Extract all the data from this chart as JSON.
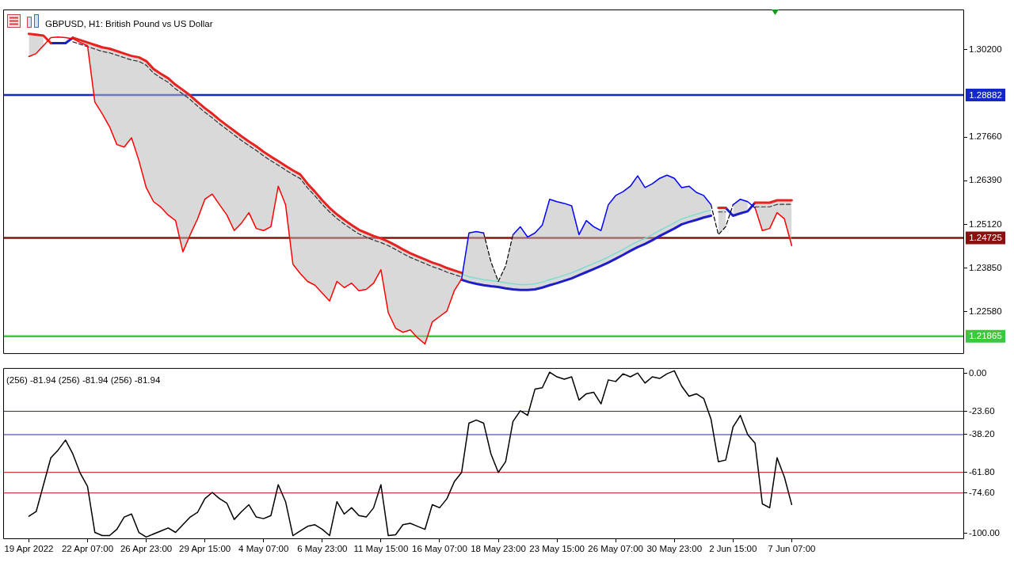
{
  "chart_data": [
    {
      "type": "line",
      "title": "GBPUSD, H1: British Pound vs US Dollar",
      "categories": [
        null,
        null,
        null,
        null,
        null,
        null,
        null,
        null,
        null,
        null,
        null,
        null,
        null,
        null,
        null,
        null,
        null,
        null,
        null,
        null,
        null,
        null,
        null,
        null,
        null,
        null,
        null,
        null,
        null,
        null,
        null,
        null,
        null,
        null,
        null,
        null,
        null,
        null,
        null,
        null,
        null,
        null,
        null,
        null,
        null,
        null,
        null,
        null,
        null,
        null,
        null,
        null,
        null,
        null,
        null,
        null,
        null,
        null,
        null,
        null,
        null,
        null,
        null,
        null,
        null,
        null,
        null,
        null,
        null,
        null,
        null,
        null,
        null,
        null,
        null,
        null,
        null,
        null,
        null,
        null,
        null,
        null,
        null,
        null,
        null,
        null,
        null,
        null,
        null,
        null,
        null,
        null,
        null,
        null,
        null,
        null,
        null,
        null,
        null,
        null,
        null,
        null,
        null,
        null,
        null,
        null,
        null,
        null,
        null,
        null,
        null,
        null,
        null,
        null,
        null,
        null,
        null,
        null,
        null,
        null,
        null,
        null,
        null,
        null,
        null,
        null,
        null,
        null,
        null,
        null,
        null
      ],
      "series": [
        {
          "color": "#ff0000",
          "values": [
            null,
            null,
            null,
            1.3,
            1.3009,
            1.3032,
            1.3055,
            1.3057,
            1.3055,
            1.3052,
            1.3041,
            1.3032,
            1.2868,
            1.2834,
            1.2796,
            1.2744,
            1.2737,
            1.2764,
            1.2698,
            1.2619,
            1.2578,
            1.2562,
            1.2539,
            1.2523,
            1.2432,
            1.2482,
            1.2528,
            1.2585,
            1.26,
            1.2569,
            1.2539,
            1.2494,
            1.2516,
            1.2546,
            1.25,
            1.2494,
            1.2505,
            1.2623,
            1.2569,
            1.2396,
            1.2369,
            1.2346,
            1.2335,
            1.2312,
            1.2289,
            1.2346,
            1.2328,
            1.2341,
            1.2319,
            1.2323,
            1.2341,
            1.238,
            1.2255,
            1.221,
            1.2198,
            1.2205,
            1.2182,
            1.2164,
            1.2228,
            1.2244,
            1.226,
            1.2319,
            1.2353,
            null,
            null,
            null,
            null,
            null,
            null,
            null,
            null,
            null,
            null,
            null,
            null,
            null,
            null,
            null,
            null,
            null,
            null,
            null,
            null,
            null,
            null,
            null,
            null,
            null,
            null,
            null,
            null,
            null,
            null,
            null,
            null,
            null,
            null,
            null,
            null,
            null,
            null,
            null,
            1.256,
            1.2494,
            1.25,
            1.2546,
            1.2528,
            1.245,
            null,
            null,
            null,
            null,
            null,
            null,
            null,
            null,
            null,
            null,
            null,
            null,
            null,
            null,
            null,
            null,
            null,
            null,
            null,
            null,
            null,
            null,
            null
          ]
        },
        {
          "color": "#0000ff",
          "values": [
            null,
            null,
            null,
            null,
            null,
            null,
            null,
            null,
            null,
            null,
            null,
            null,
            null,
            null,
            null,
            null,
            null,
            null,
            null,
            null,
            null,
            null,
            null,
            null,
            null,
            null,
            null,
            null,
            null,
            null,
            null,
            null,
            null,
            null,
            null,
            null,
            null,
            null,
            null,
            null,
            null,
            null,
            null,
            null,
            null,
            null,
            null,
            null,
            null,
            null,
            null,
            null,
            null,
            null,
            null,
            null,
            null,
            null,
            null,
            null,
            null,
            null,
            1.2353,
            1.2487,
            1.2491,
            1.2487,
            null,
            null,
            null,
            1.2482,
            1.2505,
            1.2475,
            1.2487,
            1.251,
            1.2585,
            1.2578,
            1.2573,
            1.2566,
            1.2482,
            1.2523,
            1.2505,
            1.2494,
            1.2569,
            1.2596,
            1.2607,
            1.2623,
            1.2653,
            1.2619,
            1.263,
            1.2646,
            1.2655,
            1.2646,
            1.2619,
            1.2623,
            1.2605,
            1.2596,
            1.2569,
            null,
            null,
            1.2569,
            1.2585,
            1.2578,
            1.256,
            null,
            null,
            null,
            null,
            null,
            null,
            null,
            null,
            null,
            null,
            null,
            null,
            null,
            null,
            null,
            null,
            null,
            null,
            null,
            null,
            null,
            null,
            null,
            null,
            null,
            null,
            null,
            null
          ]
        },
        {
          "color": "#000000",
          "line_style": "dashed",
          "values": [
            null,
            null,
            null,
            null,
            null,
            null,
            null,
            null,
            null,
            null,
            null,
            null,
            null,
            null,
            null,
            null,
            null,
            null,
            null,
            null,
            null,
            null,
            null,
            null,
            null,
            null,
            null,
            null,
            null,
            null,
            null,
            null,
            null,
            null,
            null,
            null,
            null,
            null,
            null,
            null,
            null,
            null,
            null,
            null,
            null,
            null,
            null,
            null,
            null,
            null,
            null,
            null,
            null,
            null,
            null,
            null,
            null,
            null,
            null,
            null,
            null,
            null,
            null,
            null,
            null,
            1.2487,
            1.2403,
            1.2346,
            1.2391,
            1.2482,
            null,
            null,
            null,
            null,
            null,
            null,
            null,
            null,
            null,
            null,
            null,
            null,
            null,
            null,
            null,
            null,
            null,
            null,
            null,
            null,
            null,
            null,
            null,
            null,
            null,
            null,
            1.2569,
            1.2482,
            1.2505,
            1.2569,
            null,
            null,
            null,
            null,
            null,
            null,
            null,
            null,
            null,
            null,
            null,
            null,
            null,
            null,
            null,
            null,
            null,
            null,
            null,
            null,
            null,
            null,
            null,
            null,
            null,
            null,
            null,
            null,
            null,
            null,
            null
          ]
        },
        {
          "color": "#e8231f",
          "values": [
            null,
            null,
            null,
            1.3066,
            1.3064,
            1.3061,
            1.3039,
            null,
            null,
            1.3055,
            1.3048,
            1.3041,
            1.3034,
            1.3027,
            1.3023,
            1.3016,
            1.3009,
            1.3002,
            1.2998,
            1.2987,
            1.2964,
            1.295,
            1.2937,
            1.2918,
            1.2903,
            1.2887,
            1.2868,
            1.285,
            1.2834,
            1.2816,
            1.28,
            1.2784,
            1.2768,
            1.2753,
            1.2739,
            1.2723,
            1.2709,
            1.2696,
            1.2682,
            1.2669,
            1.2657,
            1.263,
            1.2607,
            1.2582,
            1.256,
            1.2541,
            1.2525,
            1.251,
            1.2496,
            1.2487,
            1.2478,
            1.2471,
            1.2462,
            1.2451,
            1.2439,
            1.2428,
            1.2419,
            1.241,
            1.2401,
            1.2394,
            1.2385,
            1.2378,
            1.2371,
            null,
            null,
            null,
            null,
            null,
            null,
            null,
            null,
            null,
            null,
            null,
            null,
            null,
            null,
            null,
            null,
            null,
            null,
            null,
            null,
            null,
            null,
            null,
            null,
            null,
            null,
            null,
            null,
            null,
            null,
            null,
            null,
            null,
            null,
            1.256,
            1.256,
            null,
            null,
            null,
            1.2575,
            1.2575,
            1.2575,
            1.2582,
            1.2582,
            1.2582,
            null,
            null,
            null,
            null,
            null,
            null,
            null,
            null,
            null,
            null,
            null,
            null,
            null,
            null,
            null,
            null,
            null,
            null,
            null,
            null,
            null,
            null,
            null
          ],
          "lower": [
            null,
            null,
            null,
            1.3,
            1.3009,
            1.3032,
            null,
            null,
            null,
            1.3052,
            1.3041,
            1.3032,
            1.2868,
            1.2834,
            1.2796,
            1.2744,
            1.2737,
            1.2764,
            1.2698,
            1.2619,
            1.2578,
            1.2562,
            1.2539,
            1.2523,
            1.2432,
            1.2482,
            1.2528,
            1.2585,
            1.26,
            1.2569,
            1.2539,
            1.2494,
            1.2516,
            1.2546,
            1.25,
            1.2494,
            1.2505,
            1.2623,
            1.2569,
            1.2396,
            1.2369,
            1.2346,
            1.2335,
            1.2312,
            1.2289,
            1.2346,
            1.2328,
            1.2341,
            1.2319,
            1.2323,
            1.2341,
            1.238,
            1.2255,
            1.221,
            1.2198,
            1.2205,
            1.2182,
            1.2164,
            1.2228,
            1.2244,
            1.226,
            1.2319,
            1.2353,
            null,
            null,
            null,
            null,
            null,
            null,
            null,
            null,
            null,
            null,
            null,
            null,
            null,
            null,
            null,
            null,
            null,
            null,
            null,
            null,
            null,
            null,
            null,
            null,
            null,
            null,
            null,
            null,
            null,
            null,
            null,
            null,
            null,
            null,
            1.2482,
            1.2505,
            null,
            null,
            null,
            1.256,
            1.2494,
            1.25,
            1.2546,
            1.2528,
            1.245,
            null,
            null,
            null,
            null,
            null,
            null,
            null,
            null,
            null,
            null,
            null,
            null,
            null,
            null,
            null,
            null,
            null,
            null,
            null,
            null,
            null,
            null,
            null
          ],
          "upper": [
            null,
            null,
            null,
            1.3066,
            1.3064,
            1.3061,
            null,
            null,
            null,
            1.3055,
            1.3048,
            1.3041,
            1.3034,
            1.3027,
            1.3023,
            1.3016,
            1.3009,
            1.3002,
            1.2998,
            1.2987,
            1.2964,
            1.295,
            1.2937,
            1.2918,
            1.2903,
            1.2887,
            1.2868,
            1.285,
            1.2834,
            1.2816,
            1.28,
            1.2784,
            1.2768,
            1.2753,
            1.2739,
            1.2723,
            1.2709,
            1.2696,
            1.2682,
            1.2669,
            1.2657,
            1.263,
            1.2607,
            1.2582,
            1.256,
            1.2541,
            1.2525,
            1.251,
            1.2496,
            1.2487,
            1.2478,
            1.2471,
            1.2462,
            1.2451,
            1.2439,
            1.2428,
            1.2419,
            1.241,
            1.2401,
            1.2394,
            1.2385,
            1.2378,
            1.2371,
            null,
            null,
            null,
            null,
            null,
            null,
            null,
            null,
            null,
            null,
            null,
            null,
            null,
            null,
            null,
            null,
            null,
            null,
            null,
            null,
            null,
            null,
            null,
            null,
            null,
            null,
            null,
            null,
            null,
            null,
            null,
            null,
            null,
            null,
            1.256,
            1.256,
            null,
            null,
            null,
            1.2575,
            1.2575,
            1.2575,
            1.2582,
            1.2582,
            1.2582,
            null,
            null,
            null,
            null,
            null,
            null,
            null,
            null,
            null,
            null,
            null,
            null,
            null,
            null,
            null,
            null,
            null,
            null,
            null,
            null,
            null,
            null,
            null
          ]
        },
        {
          "color": "#1e1ec8",
          "values": [
            null,
            null,
            null,
            null,
            null,
            null,
            1.3039,
            1.3039,
            1.3039,
            1.3055,
            null,
            null,
            null,
            null,
            null,
            null,
            null,
            null,
            null,
            null,
            null,
            null,
            null,
            null,
            null,
            null,
            null,
            null,
            null,
            null,
            null,
            null,
            null,
            null,
            null,
            null,
            null,
            null,
            null,
            null,
            null,
            null,
            null,
            null,
            null,
            null,
            null,
            null,
            null,
            null,
            null,
            null,
            null,
            null,
            null,
            null,
            null,
            null,
            null,
            null,
            null,
            null,
            1.2351,
            1.2344,
            1.2339,
            1.2335,
            1.2332,
            1.233,
            1.2326,
            1.2323,
            1.2321,
            1.2321,
            1.2323,
            1.2328,
            1.2335,
            1.2341,
            1.2348,
            1.2355,
            1.2364,
            1.2373,
            1.2382,
            1.2391,
            1.2401,
            1.2412,
            1.2423,
            1.2435,
            1.2446,
            1.2455,
            1.2466,
            1.2478,
            1.2489,
            1.25,
            1.2512,
            1.2519,
            1.2525,
            1.2532,
            1.2537,
            null,
            1.256,
            1.2537,
            1.2544,
            1.255,
            1.2575,
            null,
            null,
            null,
            null,
            null,
            null,
            null,
            null,
            null,
            null,
            null,
            null,
            null,
            null,
            null,
            null,
            null,
            null,
            null,
            null,
            null,
            null,
            null,
            null,
            null,
            null,
            null,
            null
          ],
          "lower": [
            null,
            null,
            null,
            null,
            null,
            null,
            null,
            null,
            null,
            null,
            null,
            null,
            null,
            null,
            null,
            null,
            null,
            null,
            null,
            null,
            null,
            null,
            null,
            null,
            null,
            null,
            null,
            null,
            null,
            null,
            null,
            null,
            null,
            null,
            null,
            null,
            null,
            null,
            null,
            null,
            null,
            null,
            null,
            null,
            null,
            null,
            null,
            null,
            null,
            null,
            null,
            null,
            null,
            null,
            null,
            null,
            null,
            null,
            null,
            null,
            null,
            null,
            1.2351,
            1.2344,
            1.2339,
            1.2335,
            1.2332,
            1.233,
            1.2326,
            1.2323,
            1.2321,
            1.2321,
            1.2323,
            1.2328,
            1.2335,
            1.2341,
            1.2348,
            1.2355,
            1.2364,
            1.2373,
            1.2382,
            1.2391,
            1.2401,
            1.2412,
            1.2423,
            1.2435,
            1.2446,
            1.2455,
            1.2466,
            1.2478,
            1.2489,
            1.25,
            1.2512,
            1.2519,
            1.2525,
            1.2532,
            1.2537,
            null,
            null,
            1.2537,
            1.2544,
            1.255,
            null,
            null,
            null,
            null,
            null,
            null,
            null,
            null,
            null,
            null,
            null,
            null,
            null,
            null,
            null,
            null,
            null,
            null,
            null,
            null,
            null,
            null,
            null,
            null,
            null,
            null,
            null,
            null,
            null
          ],
          "upper": [
            null,
            null,
            null,
            null,
            null,
            null,
            null,
            null,
            null,
            null,
            null,
            null,
            null,
            null,
            null,
            null,
            null,
            null,
            null,
            null,
            null,
            null,
            null,
            null,
            null,
            null,
            null,
            null,
            null,
            null,
            null,
            null,
            null,
            null,
            null,
            null,
            null,
            null,
            null,
            null,
            null,
            null,
            null,
            null,
            null,
            null,
            null,
            null,
            null,
            null,
            null,
            null,
            null,
            null,
            null,
            null,
            null,
            null,
            null,
            null,
            null,
            null,
            1.2353,
            1.2487,
            1.2491,
            1.2487,
            1.2403,
            1.2346,
            1.2391,
            1.2482,
            1.2505,
            1.2475,
            1.2487,
            1.251,
            1.2585,
            1.2578,
            1.2573,
            1.2566,
            1.2482,
            1.2523,
            1.2505,
            1.2494,
            1.2569,
            1.2596,
            1.2607,
            1.2623,
            1.2653,
            1.2619,
            1.263,
            1.2646,
            1.2655,
            1.2646,
            1.2619,
            1.2623,
            1.2605,
            1.2596,
            1.2569,
            null,
            null,
            1.2569,
            1.2585,
            1.2578,
            null,
            null,
            null,
            null,
            null,
            null,
            null,
            null,
            null,
            null,
            null,
            null,
            null,
            null,
            null,
            null,
            null,
            null,
            null,
            null,
            null,
            null,
            null,
            null,
            null,
            null,
            null,
            null,
            null
          ]
        },
        {
          "color": "#303030",
          "line_style": "dashed",
          "values": [
            null,
            null,
            null,
            null,
            null,
            null,
            null,
            null,
            null,
            1.3043,
            1.3036,
            1.3029,
            1.3022,
            1.3015,
            1.3011,
            1.3004,
            1.2997,
            1.299,
            1.2986,
            1.2975,
            1.2952,
            1.2938,
            1.2925,
            1.2906,
            1.2891,
            1.2875,
            1.2856,
            1.2838,
            1.2822,
            1.2804,
            1.2788,
            1.2772,
            1.2756,
            1.2741,
            1.2727,
            1.2711,
            1.2697,
            1.2684,
            1.267,
            1.2657,
            1.2645,
            1.2618,
            1.2595,
            1.257,
            1.2548,
            1.2529,
            1.2513,
            1.2498,
            1.2484,
            1.2475,
            1.2466,
            1.2459,
            1.245,
            1.2439,
            1.2427,
            1.2416,
            1.2407,
            1.2398,
            1.2389,
            1.2382,
            1.2373,
            1.2366,
            1.2359,
            null,
            null,
            null,
            null,
            null,
            null,
            null,
            null,
            null,
            null,
            null,
            null,
            null,
            null,
            null,
            null,
            null,
            null,
            null,
            null,
            null,
            null,
            null,
            null,
            null,
            null,
            null,
            null,
            null,
            null,
            null,
            null,
            null,
            null,
            1.2548,
            1.2548,
            null,
            null,
            null,
            1.2563,
            1.2563,
            1.2563,
            1.257,
            1.257,
            1.257,
            null,
            null,
            null,
            null,
            null,
            null,
            null,
            null,
            null,
            null,
            null,
            null,
            null,
            null,
            null,
            null,
            null,
            null,
            null,
            null,
            null,
            null,
            null
          ]
        },
        {
          "color": "#7ddccf",
          "values": [
            null,
            null,
            null,
            null,
            null,
            null,
            null,
            null,
            null,
            null,
            null,
            null,
            null,
            null,
            null,
            null,
            null,
            null,
            null,
            null,
            null,
            null,
            null,
            null,
            null,
            null,
            null,
            null,
            null,
            null,
            null,
            null,
            null,
            null,
            null,
            null,
            null,
            null,
            null,
            null,
            null,
            null,
            null,
            null,
            null,
            null,
            null,
            null,
            null,
            null,
            null,
            null,
            null,
            null,
            null,
            null,
            null,
            null,
            null,
            null,
            null,
            null,
            1.2367,
            1.236,
            1.2355,
            1.2351,
            1.2348,
            1.2346,
            1.2342,
            1.2339,
            1.2337,
            1.2337,
            1.2339,
            1.2344,
            1.2351,
            1.2357,
            1.2364,
            1.2371,
            1.238,
            1.2389,
            1.2398,
            1.2407,
            1.2417,
            1.2428,
            1.2439,
            1.2451,
            1.2462,
            1.2471,
            1.2482,
            1.2494,
            1.2505,
            1.2516,
            1.2528,
            1.2535,
            1.2541,
            1.2548,
            1.2553,
            null,
            null,
            null,
            null,
            null,
            null,
            null,
            null,
            null,
            null,
            null,
            null,
            null,
            null,
            null,
            null,
            null,
            null,
            null,
            null,
            null,
            null,
            null,
            null,
            null,
            null,
            null,
            null,
            null,
            null,
            null,
            null,
            null,
            null
          ]
        }
      ],
      "ylim": [
        1.2135,
        1.3137
      ],
      "yticks": [
        {
          "value": 1.302,
          "label": "1.30200"
        },
        {
          "value": 1.2766,
          "label": "1.27660"
        },
        {
          "value": 1.2639,
          "label": "1.26390"
        },
        {
          "value": 1.2512,
          "label": "1.25120"
        },
        {
          "value": 1.2385,
          "label": "1.23850"
        },
        {
          "value": 1.2258,
          "label": "1.22580"
        }
      ],
      "ref_lines": [
        {
          "axis": "y",
          "value": 1.28882,
          "label": "1.28882",
          "color": "#1428c8"
        },
        {
          "axis": "y",
          "value": 1.24725,
          "label": "1.24725",
          "color": "#8b1010"
        },
        {
          "axis": "y",
          "value": 1.21865,
          "label": "1.21865",
          "color": "#3cc83c"
        }
      ],
      "grid": false,
      "legend": false,
      "tick_labels": "y",
      "marker": "none"
    },
    {
      "type": "line",
      "categories": [
        null,
        null,
        null,
        "19 Apr 2022",
        null,
        null,
        null,
        null,
        null,
        null,
        null,
        "22 Apr 07:00",
        null,
        null,
        null,
        null,
        null,
        null,
        null,
        "26 Apr 23:00",
        null,
        null,
        null,
        null,
        null,
        null,
        null,
        "29 Apr 15:00",
        null,
        null,
        null,
        null,
        null,
        null,
        null,
        "4 May 07:00",
        null,
        null,
        null,
        null,
        null,
        null,
        null,
        "6 May 23:00",
        null,
        null,
        null,
        null,
        null,
        null,
        null,
        "11 May 15:00",
        null,
        null,
        null,
        null,
        null,
        null,
        null,
        "16 May 07:00",
        null,
        null,
        null,
        null,
        null,
        null,
        null,
        "18 May 23:00",
        null,
        null,
        null,
        null,
        null,
        null,
        null,
        "23 May 15:00",
        null,
        null,
        null,
        null,
        null,
        null,
        null,
        "26 May 07:00",
        null,
        null,
        null,
        null,
        null,
        null,
        null,
        "30 May 23:00",
        null,
        null,
        null,
        null,
        null,
        null,
        null,
        "2 Jun 15:00",
        null,
        null,
        null,
        null,
        null,
        null,
        null,
        "7 Jun 07:00",
        null,
        null,
        null,
        null,
        null,
        null,
        null,
        null,
        null,
        null,
        null,
        null,
        null,
        null,
        null,
        null,
        null,
        null,
        null,
        null,
        null,
        null,
        null
      ],
      "series": [
        {
          "color": "#000000",
          "values": [
            null,
            null,
            null,
            -89.2,
            -86.3,
            -69.5,
            -52.7,
            -47.8,
            -41.6,
            -50.3,
            -62.3,
            -70.5,
            -99.3,
            -101.3,
            -101.3,
            -97.4,
            -89.7,
            -87.8,
            -99.3,
            -102.2,
            -100.3,
            -98.4,
            -96.5,
            -99.3,
            -94.5,
            -89.7,
            -86.8,
            -78.2,
            -74.3,
            -78.2,
            -81.1,
            -91.2,
            -86.3,
            -82.0,
            -89.7,
            -90.7,
            -88.8,
            -69.5,
            -80.1,
            -101.3,
            -98.4,
            -95.5,
            -94.5,
            -97.4,
            -101.3,
            -80.1,
            -87.8,
            -83.9,
            -88.8,
            -89.7,
            -83.9,
            -69.5,
            -101.3,
            -100.8,
            -94.5,
            -93.6,
            -95.5,
            -97.4,
            -82.0,
            -83.9,
            -78.2,
            -67.6,
            -61.8,
            -31.0,
            -29.1,
            -31.0,
            -50.3,
            -61.8,
            -55.1,
            -30.0,
            -23.3,
            -26.2,
            -9.8,
            -8.9,
            0.8,
            -2.1,
            -3.6,
            -2.1,
            -16.6,
            -12.7,
            -11.7,
            -19.0,
            -4.0,
            -5.0,
            -0.2,
            -2.1,
            0.3,
            -6.0,
            -2.1,
            -3.1,
            -0.2,
            1.7,
            -7.9,
            -14.2,
            -12.7,
            -15.6,
            -28.6,
            -55.1,
            -54.1,
            -33.4,
            -26.2,
            -38.2,
            -43.5,
            -81.5,
            -83.9,
            -52.7,
            -64.7,
            -81.9,
            null,
            null,
            null,
            null,
            null,
            null,
            null,
            null,
            null,
            null,
            null,
            null,
            null,
            null,
            null,
            null,
            null,
            null,
            null,
            null,
            null,
            null,
            null
          ]
        }
      ],
      "ylim": [
        -103.5,
        3.4
      ],
      "yticks": [
        {
          "value": 0,
          "label": "0.00"
        },
        {
          "value": -23.6,
          "label": "-23.60"
        },
        {
          "value": -38.2,
          "label": "-38.20"
        },
        {
          "value": -61.8,
          "label": "-61.80"
        },
        {
          "value": -74.6,
          "label": "-74.60"
        },
        {
          "value": -100,
          "label": "-100.00"
        }
      ],
      "ref_lines": [
        {
          "axis": "y",
          "value": -23.6,
          "color": "#2828a0"
        },
        {
          "axis": "y",
          "value": -38.2,
          "color": "#2828a0"
        },
        {
          "axis": "y",
          "value": -61.8,
          "color": "#d03c3c"
        },
        {
          "axis": "y",
          "value": -74.6,
          "color": "#d03c3c"
        }
      ],
      "annotations": [
        "(256) -81.94 (256) -81.94 (256) -81.94"
      ],
      "grid": false,
      "legend": false,
      "marker": "none"
    }
  ]
}
